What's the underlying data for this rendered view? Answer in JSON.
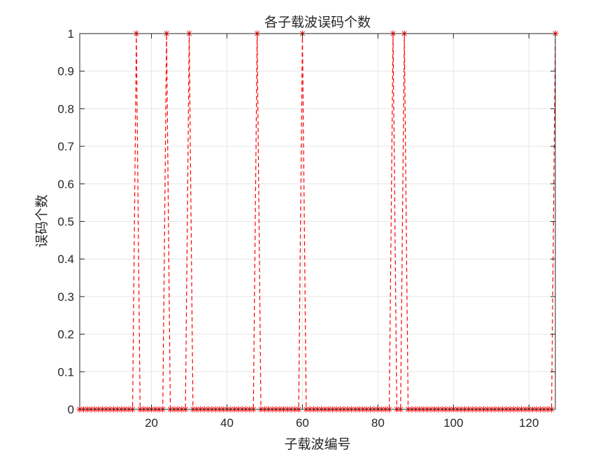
{
  "chart_data": {
    "type": "line",
    "title": "各子载波误码个数",
    "xlabel": "子载波编号",
    "ylabel": "误码个数",
    "xlim": [
      1,
      127
    ],
    "ylim": [
      0,
      1
    ],
    "xticks": [
      20,
      40,
      60,
      80,
      100,
      120
    ],
    "yticks": [
      0,
      0.1,
      0.2,
      0.3,
      0.4,
      0.5,
      0.6,
      0.7,
      0.8,
      0.9,
      1
    ],
    "grid": true,
    "line_style": "dashed",
    "marker": "asterisk",
    "colors": {
      "series": "#ff0000",
      "grid": "#e6e6e6",
      "axis": "#262626"
    },
    "series": [
      {
        "x": [
          1,
          2,
          3,
          4,
          5,
          6,
          7,
          8,
          9,
          10,
          11,
          12,
          13,
          14,
          15,
          16,
          17,
          18,
          19,
          20,
          21,
          22,
          23,
          24,
          25,
          26,
          27,
          28,
          29,
          30,
          31,
          32,
          33,
          34,
          35,
          36,
          37,
          38,
          39,
          40,
          41,
          42,
          43,
          44,
          45,
          46,
          47,
          48,
          49,
          50,
          51,
          52,
          53,
          54,
          55,
          56,
          57,
          58,
          59,
          60,
          61,
          62,
          63,
          64,
          65,
          66,
          67,
          68,
          69,
          70,
          71,
          72,
          73,
          74,
          75,
          76,
          77,
          78,
          79,
          80,
          81,
          82,
          83,
          84,
          85,
          86,
          87,
          88,
          89,
          90,
          91,
          92,
          93,
          94,
          95,
          96,
          97,
          98,
          99,
          100,
          101,
          102,
          103,
          104,
          105,
          106,
          107,
          108,
          109,
          110,
          111,
          112,
          113,
          114,
          115,
          116,
          117,
          118,
          119,
          120,
          121,
          122,
          123,
          124,
          125,
          126,
          127
        ],
        "values": [
          0,
          0,
          0,
          0,
          0,
          0,
          0,
          0,
          0,
          0,
          0,
          0,
          0,
          0,
          0,
          1,
          0,
          0,
          0,
          0,
          0,
          0,
          0,
          1,
          0,
          0,
          0,
          0,
          0,
          1,
          0,
          0,
          0,
          0,
          0,
          0,
          0,
          0,
          0,
          0,
          0,
          0,
          0,
          0,
          0,
          0,
          0,
          1,
          0,
          0,
          0,
          0,
          0,
          0,
          0,
          0,
          0,
          0,
          0,
          1,
          0,
          0,
          0,
          0,
          0,
          0,
          0,
          0,
          0,
          0,
          0,
          0,
          0,
          0,
          0,
          0,
          0,
          0,
          0,
          0,
          0,
          0,
          0,
          1,
          0,
          0,
          1,
          0,
          0,
          0,
          0,
          0,
          0,
          0,
          0,
          0,
          0,
          0,
          0,
          0,
          0,
          0,
          0,
          0,
          0,
          0,
          0,
          0,
          0,
          0,
          0,
          0,
          0,
          0,
          0,
          0,
          0,
          0,
          0,
          0,
          0,
          0,
          0,
          0,
          0,
          0,
          1
        ]
      }
    ]
  }
}
